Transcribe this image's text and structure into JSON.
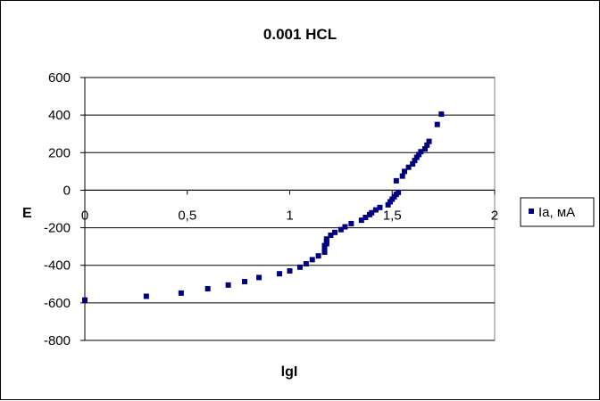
{
  "chart_data": {
    "type": "scatter",
    "title": "0.001 HCL",
    "xlabel": "lgI",
    "ylabel": "E",
    "xlim": [
      0,
      2
    ],
    "ylim": [
      -800,
      600
    ],
    "xticks": [
      0,
      0.5,
      1,
      1.5,
      2
    ],
    "xtick_labels": [
      "0",
      "0,5",
      "1",
      "1,5",
      "2"
    ],
    "yticks": [
      600,
      400,
      200,
      0,
      -200,
      -400,
      -600,
      -800
    ],
    "ytick_labels": [
      "600",
      "400",
      "200",
      "0",
      "-200",
      "-400",
      "-600",
      "-800"
    ],
    "grid": "horizontal",
    "legend_position": "right",
    "marker_color": "#000080",
    "series": [
      {
        "name": "Ia, мА",
        "x": [
          0.0,
          0.3,
          0.47,
          0.6,
          0.7,
          0.78,
          0.85,
          0.95,
          1.0,
          1.05,
          1.08,
          1.11,
          1.14,
          1.17,
          1.17,
          1.17,
          1.18,
          1.18,
          1.18,
          1.2,
          1.22,
          1.25,
          1.27,
          1.3,
          1.35,
          1.37,
          1.39,
          1.4,
          1.42,
          1.44,
          1.48,
          1.49,
          1.5,
          1.51,
          1.52,
          1.53,
          1.52,
          1.55,
          1.56,
          1.58,
          1.6,
          1.61,
          1.62,
          1.63,
          1.64,
          1.66,
          1.67,
          1.68,
          1.72,
          1.74
        ],
        "y": [
          -585,
          -565,
          -548,
          -525,
          -505,
          -487,
          -465,
          -445,
          -430,
          -410,
          -392,
          -370,
          -350,
          -330,
          -310,
          -295,
          -285,
          -270,
          -260,
          -240,
          -225,
          -210,
          -195,
          -178,
          -160,
          -145,
          -130,
          -120,
          -105,
          -92,
          -78,
          -62,
          -48,
          -35,
          -22,
          -12,
          50,
          75,
          100,
          122,
          140,
          158,
          175,
          190,
          205,
          220,
          240,
          260,
          350,
          405
        ]
      }
    ]
  }
}
